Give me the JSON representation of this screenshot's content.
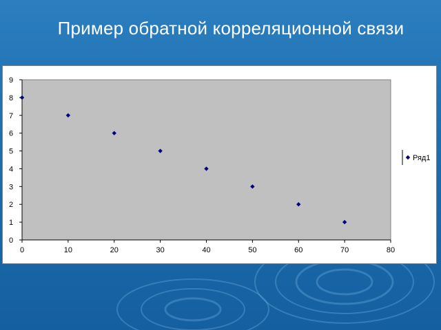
{
  "slide": {
    "title": "Пример обратной корреляционной связи"
  },
  "colors": {
    "background": "#1d6fb0",
    "plot_area": "#c0c0c0",
    "marker": "#000080"
  },
  "chart_data": {
    "type": "scatter",
    "title": "",
    "xlabel": "",
    "ylabel": "",
    "xlim": [
      0,
      80
    ],
    "ylim": [
      0,
      9
    ],
    "x_ticks": [
      0,
      10,
      20,
      30,
      40,
      50,
      60,
      70,
      80
    ],
    "y_ticks": [
      0,
      1,
      2,
      3,
      4,
      5,
      6,
      7,
      8,
      9
    ],
    "grid": false,
    "legend_position": "right",
    "series": [
      {
        "name": "Ряд1",
        "marker": "diamond",
        "x": [
          0,
          10,
          20,
          30,
          40,
          50,
          60,
          70
        ],
        "y": [
          8,
          7,
          6,
          5,
          4,
          3,
          2,
          1
        ]
      }
    ]
  }
}
